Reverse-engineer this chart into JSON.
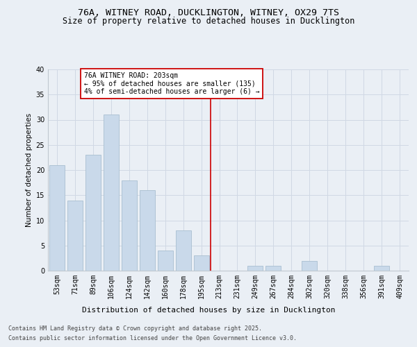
{
  "title1": "76A, WITNEY ROAD, DUCKLINGTON, WITNEY, OX29 7TS",
  "title2": "Size of property relative to detached houses in Ducklington",
  "xlabel": "Distribution of detached houses by size in Ducklington",
  "ylabel": "Number of detached properties",
  "categories": [
    "53sqm",
    "71sqm",
    "89sqm",
    "106sqm",
    "124sqm",
    "142sqm",
    "160sqm",
    "178sqm",
    "195sqm",
    "213sqm",
    "231sqm",
    "249sqm",
    "267sqm",
    "284sqm",
    "302sqm",
    "320sqm",
    "338sqm",
    "356sqm",
    "391sqm",
    "409sqm"
  ],
  "values": [
    21,
    14,
    23,
    31,
    18,
    16,
    4,
    8,
    3,
    0,
    0,
    1,
    1,
    0,
    2,
    0,
    0,
    0,
    1,
    0
  ],
  "bar_color": "#c9d9ea",
  "bar_edgecolor": "#a8bfd0",
  "grid_color": "#d0d8e4",
  "background_color": "#eaeff5",
  "vline_x": 8.5,
  "vline_color": "#cc0000",
  "annotation_title": "76A WITNEY ROAD: 203sqm",
  "annotation_line1": "← 95% of detached houses are smaller (135)",
  "annotation_line2": "4% of semi-detached houses are larger (6) →",
  "annotation_box_facecolor": "#ffffff",
  "annotation_box_edgecolor": "#cc0000",
  "ylim": [
    0,
    40
  ],
  "yticks": [
    0,
    5,
    10,
    15,
    20,
    25,
    30,
    35,
    40
  ],
  "footer_line1": "Contains HM Land Registry data © Crown copyright and database right 2025.",
  "footer_line2": "Contains public sector information licensed under the Open Government Licence v3.0.",
  "title1_fontsize": 9.5,
  "title2_fontsize": 8.5,
  "xlabel_fontsize": 8,
  "ylabel_fontsize": 7.5,
  "tick_fontsize": 7,
  "footer_fontsize": 6,
  "annotation_fontsize": 7
}
